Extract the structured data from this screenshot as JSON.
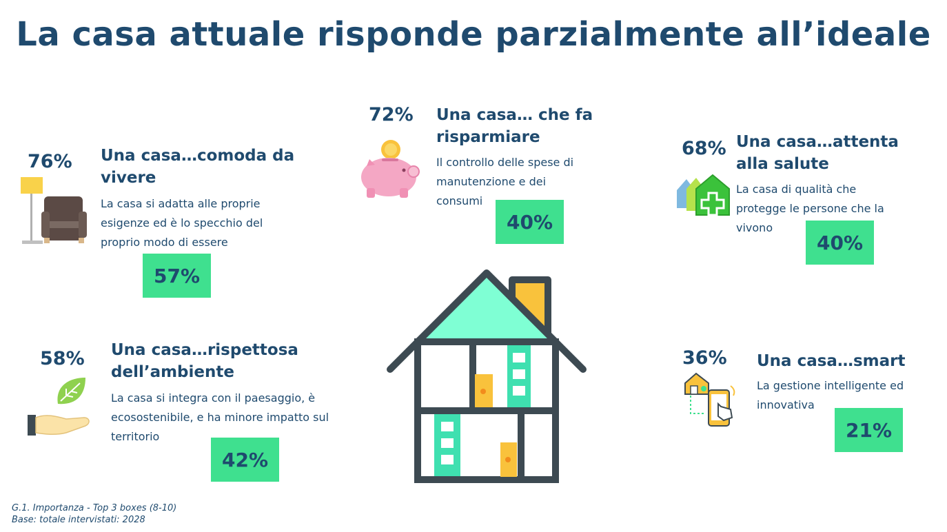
{
  "title": "La casa attuale risponde parzialmente all’ideale",
  "items": [
    {
      "icon": "armchair-lamp-icon",
      "top_pct": "76%",
      "heading": "Una casa…comoda da vivere",
      "description": "La casa si adatta alle proprie esigenze ed è lo specchio del proprio modo di essere",
      "score": "57%"
    },
    {
      "icon": "piggy-bank-icon",
      "top_pct": "72%",
      "heading": "Una casa… che fa risparmiare",
      "description": "Il controllo delle spese di manutenzione e dei consumi",
      "score": "40%"
    },
    {
      "icon": "health-house-icon",
      "top_pct": "68%",
      "heading": "Una casa…attenta alla salute",
      "description": "La casa di qualità che protegge le persone che la vivono",
      "score": "40%"
    },
    {
      "icon": "leaf-hand-icon",
      "top_pct": "58%",
      "heading": "Una casa…rispettosa dell’ambiente",
      "description": "La casa si integra con il paesaggio, è ecosostenibile, e ha minore impatto sul territorio",
      "score": "42%"
    },
    {
      "icon": "smart-home-phone-icon",
      "top_pct": "36%",
      "heading": "Una casa…smart",
      "description": "La gestione intelligente ed innovativa",
      "score": "21%"
    }
  ],
  "footer": {
    "line1": "G.1. Importanza - Top 3 boxes (8-10)",
    "line2": "Base: totale intervistati: 2028"
  },
  "colors": {
    "title": "#1f4a6e",
    "score_box": "#3fe08f",
    "roof": "#7fffd4",
    "accent_yellow": "#f9c23c",
    "house_outline": "#3d4a52"
  }
}
